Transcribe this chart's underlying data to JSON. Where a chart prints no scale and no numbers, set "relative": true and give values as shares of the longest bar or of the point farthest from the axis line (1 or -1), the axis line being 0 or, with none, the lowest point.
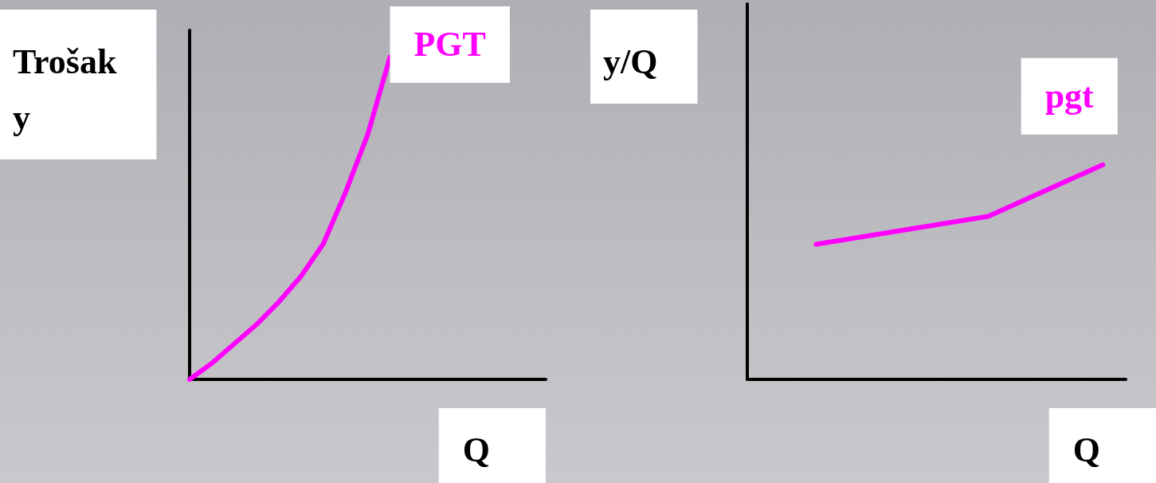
{
  "chart_data": [
    {
      "type": "line",
      "ylabel": "Trošak\ny",
      "xlabel": "Q",
      "relative": true,
      "tick_labels": false,
      "categories": [
        null,
        null,
        null,
        null,
        null,
        null,
        null,
        null,
        null,
        null,
        null,
        null,
        null,
        null,
        null,
        null,
        null
      ],
      "series": [
        {
          "name": "PGT",
          "color": "#ff00ff",
          "values": [
            0,
            0.05,
            0.11,
            0.17,
            0.24,
            0.32,
            0.42,
            0.58,
            0.76,
            1.0,
            null,
            null,
            null,
            null,
            null,
            null,
            null
          ]
        }
      ]
    },
    {
      "type": "line",
      "ylabel": "y/Q",
      "xlabel": "Q",
      "relative": true,
      "tick_labels": false,
      "categories": [
        null,
        null,
        null,
        null,
        null,
        null,
        null,
        null,
        null,
        null,
        null,
        null,
        null,
        null,
        null,
        null,
        null,
        null,
        null,
        null,
        null,
        null,
        null,
        null,
        null,
        null,
        null,
        null,
        null,
        null,
        null,
        null,
        null,
        null
      ],
      "series": [
        {
          "name": "pgt",
          "color": "#ff00ff",
          "values": [
            null,
            null,
            null,
            null,
            null,
            null,
            0.63,
            null,
            null,
            null,
            null,
            null,
            null,
            null,
            null,
            null,
            null,
            null,
            null,
            null,
            null,
            0.76,
            null,
            null,
            null,
            null,
            null,
            null,
            null,
            null,
            null,
            1.0,
            null,
            null
          ]
        }
      ]
    }
  ]
}
